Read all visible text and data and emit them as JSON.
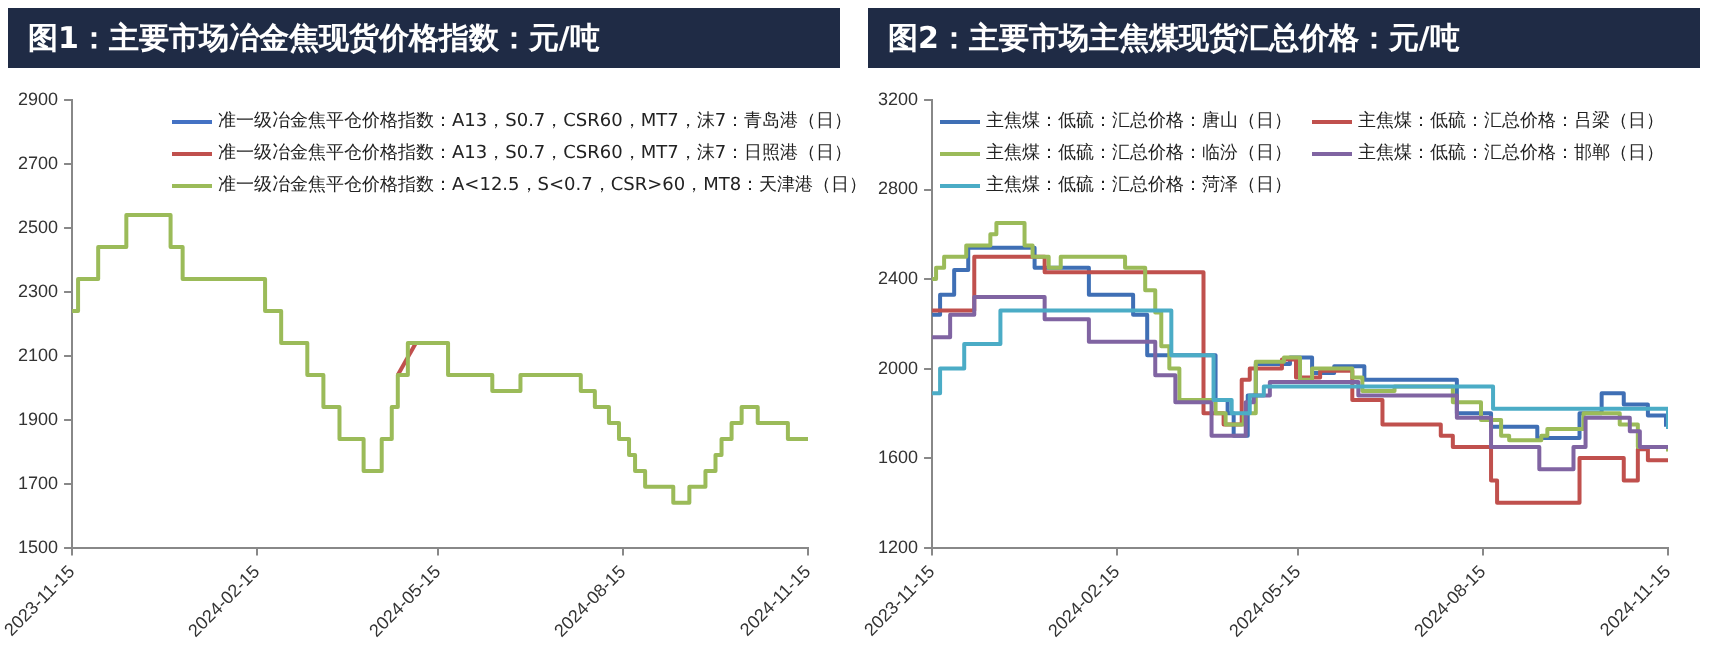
{
  "chart_data": [
    {
      "type": "step",
      "title": "图1：主要市场冶金焦现货价格指数：元/吨",
      "ylim": [
        1500,
        2900
      ],
      "yticks": [
        1500,
        1700,
        1900,
        2100,
        2300,
        2500,
        2700,
        2900
      ],
      "xlim": [
        "2023-11-15",
        "2024-11-15"
      ],
      "xticks": [
        "2023-11-15",
        "2024-02-15",
        "2024-05-15",
        "2024-08-15",
        "2024-11-15"
      ],
      "grid": false,
      "legend": "top",
      "marker": "none",
      "series": [
        {
          "name": "准一级冶金焦平仓价格指数：A13，S0.7，CSR60，MT7，沫7：青岛港（日）",
          "color": "#4472c4"
        },
        {
          "name": "准一级冶金焦平仓价格指数：A13，S0.7，CSR60，MT7，沫7：日照港（日）",
          "color": "#c0504d",
          "type": "line",
          "x": [
            "2024-04-25",
            "2024-05-04"
          ],
          "values": [
            2040,
            2140
          ]
        },
        {
          "name": "准一级冶金焦平仓价格指数：A<12.5，S<0.7，CSR>60，MT8：天津港（日）",
          "color": "#9bbb59",
          "x": [
            "2023-11-15",
            "2023-11-18",
            "2023-11-28",
            "2023-12-12",
            "2024-01-03",
            "2024-01-09",
            "2024-02-19",
            "2024-02-27",
            "2024-03-11",
            "2024-03-19",
            "2024-03-27",
            "2024-04-08",
            "2024-04-17",
            "2024-04-22",
            "2024-04-25",
            "2024-04-30",
            "2024-05-20",
            "2024-06-11",
            "2024-06-25",
            "2024-07-25",
            "2024-08-01",
            "2024-08-08",
            "2024-08-13",
            "2024-08-18",
            "2024-08-21",
            "2024-08-26",
            "2024-09-09",
            "2024-09-17",
            "2024-09-25",
            "2024-09-30",
            "2024-10-03",
            "2024-10-08",
            "2024-10-13",
            "2024-10-21",
            "2024-11-05",
            "2024-11-15"
          ],
          "values": [
            2240,
            2340,
            2440,
            2540,
            2440,
            2340,
            2240,
            2140,
            2040,
            1940,
            1840,
            1740,
            1840,
            1940,
            2040,
            2140,
            2040,
            1990,
            2040,
            1990,
            1940,
            1890,
            1840,
            1790,
            1740,
            1690,
            1640,
            1690,
            1740,
            1790,
            1840,
            1890,
            1940,
            1890,
            1840,
            1840
          ]
        }
      ]
    },
    {
      "type": "step",
      "title": "图2：主要市场主焦煤现货汇总价格：元/吨",
      "ylim": [
        1200,
        3200
      ],
      "yticks": [
        1200,
        1600,
        2000,
        2400,
        2800,
        3200
      ],
      "xlim": [
        "2023-11-15",
        "2024-11-15"
      ],
      "xticks": [
        "2023-11-15",
        "2024-02-15",
        "2024-05-15",
        "2024-08-15",
        "2024-11-15"
      ],
      "grid": false,
      "legend": "top",
      "marker": "none",
      "series": [
        {
          "name": "主焦煤：低硫：汇总价格：唐山（日）",
          "color": "#3f6fb5",
          "x": [
            "2023-11-15",
            "2023-11-19",
            "2023-11-26",
            "2023-12-03",
            "2024-01-05",
            "2024-02-01",
            "2024-02-23",
            "2024-03-01",
            "2024-04-04",
            "2024-04-10",
            "2024-04-13",
            "2024-04-20",
            "2024-04-24",
            "2024-05-11",
            "2024-05-22",
            "2024-06-02",
            "2024-06-17",
            "2024-08-02",
            "2024-08-19",
            "2024-09-11",
            "2024-10-02",
            "2024-10-13",
            "2024-10-24",
            "2024-11-05",
            "2024-11-14"
          ],
          "values": [
            2240,
            2330,
            2440,
            2540,
            2450,
            2330,
            2240,
            2060,
            1860,
            1800,
            1700,
            1880,
            2020,
            2050,
            1980,
            2010,
            1950,
            1800,
            1740,
            1690,
            1800,
            1890,
            1840,
            1790,
            1740
          ]
        },
        {
          "name": "主焦煤：低硫：汇总价格：吕梁（日）",
          "color": "#c0504d",
          "x": [
            "2023-11-15",
            "2023-12-06",
            "2024-01-10",
            "2024-03-29",
            "2024-04-08",
            "2024-04-17",
            "2024-04-21",
            "2024-05-07",
            "2024-05-14",
            "2024-05-26",
            "2024-06-11",
            "2024-06-26",
            "2024-07-25",
            "2024-07-31",
            "2024-08-19",
            "2024-08-22",
            "2024-10-02",
            "2024-10-24",
            "2024-10-31",
            "2024-11-05",
            "2024-11-15"
          ],
          "values": [
            2260,
            2500,
            2430,
            1800,
            1750,
            1950,
            2000,
            2040,
            1960,
            1990,
            1860,
            1750,
            1700,
            1650,
            1500,
            1400,
            1600,
            1500,
            1640,
            1590,
            1590
          ]
        },
        {
          "name": "主焦煤：低硫：汇总价格：临汾（日）",
          "color": "#9bbb59",
          "x": [
            "2023-11-15",
            "2023-11-17",
            "2023-11-21",
            "2023-12-02",
            "2023-12-14",
            "2023-12-17",
            "2023-12-31",
            "2024-01-04",
            "2024-01-12",
            "2024-01-18",
            "2024-02-19",
            "2024-02-29",
            "2024-03-05",
            "2024-03-08",
            "2024-03-12",
            "2024-03-17",
            "2024-04-04",
            "2024-04-09",
            "2024-04-18",
            "2024-04-24",
            "2024-05-08",
            "2024-05-16",
            "2024-05-22",
            "2024-06-11",
            "2024-06-16",
            "2024-07-02",
            "2024-07-31",
            "2024-08-14",
            "2024-08-24",
            "2024-08-28",
            "2024-09-13",
            "2024-09-16",
            "2024-10-04",
            "2024-10-22",
            "2024-10-31",
            "2024-11-15"
          ],
          "values": [
            2400,
            2450,
            2500,
            2550,
            2600,
            2650,
            2550,
            2500,
            2450,
            2500,
            2450,
            2350,
            2250,
            2100,
            2000,
            1860,
            1800,
            1750,
            1800,
            2030,
            2050,
            1950,
            2000,
            1960,
            1900,
            1920,
            1850,
            1770,
            1700,
            1680,
            1700,
            1730,
            1800,
            1750,
            1650,
            1630
          ]
        },
        {
          "name": "主焦煤：低硫：汇总价格：邯郸（日）",
          "color": "#8064a2",
          "x": [
            "2023-11-15",
            "2023-11-24",
            "2023-12-06",
            "2024-01-10",
            "2024-02-01",
            "2024-03-05",
            "2024-03-15",
            "2024-04-02",
            "2024-04-19",
            "2024-04-23",
            "2024-05-01",
            "2024-06-14",
            "2024-08-02",
            "2024-08-19",
            "2024-09-12",
            "2024-09-29",
            "2024-10-05",
            "2024-10-27",
            "2024-11-01",
            "2024-11-15"
          ],
          "values": [
            2140,
            2240,
            2320,
            2220,
            2120,
            1970,
            1850,
            1700,
            1850,
            1880,
            1940,
            1880,
            1780,
            1650,
            1550,
            1650,
            1780,
            1720,
            1650,
            1640
          ]
        },
        {
          "name": "主焦煤：低硫：汇总价格：菏泽（日）",
          "color": "#4bacc6",
          "x": [
            "2023-11-15",
            "2023-11-19",
            "2023-12-01",
            "2023-12-19",
            "2024-03-13",
            "2024-04-03",
            "2024-04-12",
            "2024-04-21",
            "2024-04-28",
            "2024-08-20",
            "2024-11-12",
            "2024-11-15"
          ],
          "values": [
            1890,
            2000,
            2110,
            2260,
            2060,
            1860,
            1800,
            1880,
            1920,
            1820,
            1820,
            1730
          ]
        }
      ]
    }
  ]
}
